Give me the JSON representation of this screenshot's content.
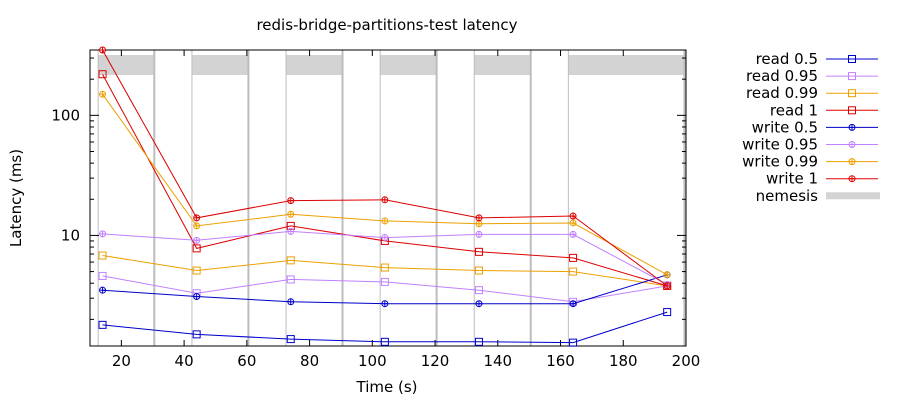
{
  "chart_data": {
    "type": "line",
    "title": "redis-bridge-partitions-test latency",
    "xlabel": "Time (s)",
    "ylabel": "Latency (ms)",
    "xlim": [
      10,
      200
    ],
    "ylim": [
      1.2,
      350
    ],
    "yscale": "log",
    "xticks": [
      20,
      40,
      60,
      80,
      100,
      120,
      140,
      160,
      180,
      200
    ],
    "yticks": [
      {
        "value": 10,
        "label": "10"
      },
      {
        "value": 100,
        "label": "100"
      }
    ],
    "grid": false,
    "legend_position": "outside-right",
    "nemesis": {
      "name": "nemesis",
      "color": "#d3d3d3",
      "intervals": [
        [
          12.6,
          30.5
        ],
        [
          42.5,
          60.5
        ],
        [
          72.5,
          90.5
        ],
        [
          102.5,
          120.5
        ],
        [
          132.5,
          150.5
        ],
        [
          162.5,
          199.5
        ]
      ]
    },
    "series": [
      {
        "name": "read 0.5",
        "color": "#0000cc",
        "marker": "square",
        "x": [
          14,
          44,
          74,
          104,
          134,
          164,
          194
        ],
        "y": [
          1.8,
          1.5,
          1.37,
          1.3,
          1.3,
          1.28,
          2.3
        ]
      },
      {
        "name": "read 0.95",
        "color": "#c080ff",
        "marker": "square",
        "x": [
          14,
          44,
          74,
          104,
          134,
          164,
          194
        ],
        "y": [
          4.6,
          3.3,
          4.3,
          4.1,
          3.5,
          2.8,
          3.8
        ]
      },
      {
        "name": "read 0.99",
        "color": "#eda000",
        "marker": "square",
        "x": [
          14,
          44,
          74,
          104,
          134,
          164,
          194
        ],
        "y": [
          6.8,
          5.1,
          6.2,
          5.4,
          5.1,
          5.0,
          3.8
        ]
      },
      {
        "name": "read 1",
        "color": "#dd0000",
        "marker": "square",
        "x": [
          14,
          44,
          74,
          104,
          134,
          164,
          194
        ],
        "y": [
          220,
          7.8,
          12,
          9.0,
          7.3,
          6.5,
          3.8
        ]
      },
      {
        "name": "write 0.5",
        "color": "#0000cc",
        "marker": "circle",
        "x": [
          14,
          44,
          74,
          104,
          134,
          164,
          194
        ],
        "y": [
          3.5,
          3.1,
          2.8,
          2.7,
          2.7,
          2.7,
          4.7
        ]
      },
      {
        "name": "write 0.95",
        "color": "#c080ff",
        "marker": "circle",
        "x": [
          14,
          44,
          74,
          104,
          134,
          164,
          194
        ],
        "y": [
          10.3,
          9.1,
          10.8,
          9.6,
          10.2,
          10.2,
          3.9
        ]
      },
      {
        "name": "write 0.99",
        "color": "#eda000",
        "marker": "circle",
        "x": [
          14,
          44,
          74,
          104,
          134,
          164,
          194
        ],
        "y": [
          150,
          12,
          15,
          13.2,
          12.5,
          12.7,
          4.7
        ]
      },
      {
        "name": "write 1",
        "color": "#dd0000",
        "marker": "circle",
        "x": [
          14,
          44,
          74,
          104,
          134,
          164,
          194
        ],
        "y": [
          350,
          14,
          19.5,
          19.8,
          14,
          14.5,
          3.8
        ]
      }
    ]
  }
}
